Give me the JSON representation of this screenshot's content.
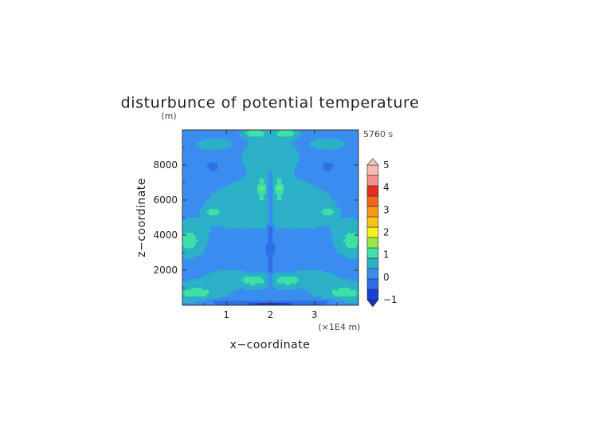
{
  "chart_data": {
    "type": "heatmap",
    "title": "disturbunce of potential temperature",
    "xlabel": "x−coordinate",
    "ylabel": "z−coordinate",
    "y_unit": "(m)",
    "x_unit": "(×1E4 m)",
    "time_label": "5760 s",
    "xlim": [
      0,
      4
    ],
    "ylim": [
      0,
      10000
    ],
    "x_ticks": [
      "1",
      "2",
      "3"
    ],
    "y_ticks": [
      "2000",
      "4000",
      "6000",
      "8000"
    ],
    "colorbar": {
      "tick_labels": [
        "5",
        "4",
        "3",
        "2",
        "1",
        "0",
        "−1"
      ],
      "levels": [
        -1,
        -0.5,
        0,
        0.5,
        1,
        1.5,
        2,
        2.5,
        3,
        3.5,
        4,
        4.5,
        5
      ],
      "colors": [
        "#1a3fd6",
        "#2f6ee6",
        "#3a8cf0",
        "#2bb0c8",
        "#3ee0a6",
        "#9ae64a",
        "#f2f21e",
        "#f6c21a",
        "#f79a1c",
        "#f0661a",
        "#e62a1e",
        "#f5908c",
        "#f7b7b2"
      ],
      "under_color": "#1b2fb8",
      "over_color": "#f7c6c2"
    },
    "grid": false,
    "field": {
      "background_level": 0.3,
      "features": [
        {
          "x": 2.0,
          "z": 5500,
          "rx": 1.55,
          "rz": 1900,
          "v": 0.8
        },
        {
          "x": 2.0,
          "z": 8500,
          "rx": 0.6,
          "rz": 900,
          "v": 0.85
        },
        {
          "x": 2.0,
          "z": 9300,
          "rx": 0.35,
          "rz": 600,
          "v": 0.85
        },
        {
          "x": 2.0,
          "z": 3200,
          "rx": 1.1,
          "rz": 900,
          "v": 0.0
        },
        {
          "x": 2.0,
          "z": 1600,
          "rx": 1.45,
          "rz": 650,
          "v": 0.85
        },
        {
          "x": 2.0,
          "z": 2200,
          "rx": 0.7,
          "rz": 400,
          "v": 0.15
        },
        {
          "x": 0.15,
          "z": 3700,
          "rx": 0.35,
          "rz": 850,
          "v": 1.2
        },
        {
          "x": 3.85,
          "z": 3700,
          "rx": 0.35,
          "rz": 850,
          "v": 1.2
        },
        {
          "x": 0.3,
          "z": 700,
          "rx": 0.6,
          "rz": 500,
          "v": 1.2
        },
        {
          "x": 3.7,
          "z": 700,
          "rx": 0.6,
          "rz": 500,
          "v": 1.2
        },
        {
          "x": 0.7,
          "z": 5300,
          "rx": 0.15,
          "rz": 250,
          "v": 1.5
        },
        {
          "x": 3.3,
          "z": 5300,
          "rx": 0.15,
          "rz": 250,
          "v": 1.5
        },
        {
          "x": 1.8,
          "z": 6700,
          "rx": 0.08,
          "rz": 650,
          "v": 1.6
        },
        {
          "x": 2.2,
          "z": 6700,
          "rx": 0.08,
          "rz": 650,
          "v": 1.6
        },
        {
          "x": 1.6,
          "z": 1400,
          "rx": 0.25,
          "rz": 250,
          "v": 1.4
        },
        {
          "x": 2.4,
          "z": 1400,
          "rx": 0.25,
          "rz": 250,
          "v": 1.4
        },
        {
          "x": 1.65,
          "z": 9800,
          "rx": 0.25,
          "rz": 250,
          "v": 1.5
        },
        {
          "x": 2.35,
          "z": 9800,
          "rx": 0.25,
          "rz": 250,
          "v": 1.5
        },
        {
          "x": 0.7,
          "z": 9200,
          "rx": 0.4,
          "rz": 350,
          "v": 0.8
        },
        {
          "x": 3.3,
          "z": 9200,
          "rx": 0.4,
          "rz": 350,
          "v": 0.8
        },
        {
          "x": 2.0,
          "z": 60,
          "rx": 0.6,
          "rz": 120,
          "v": -1.4
        },
        {
          "x": 1.0,
          "z": 150,
          "rx": 0.5,
          "rz": 200,
          "v": -0.2
        },
        {
          "x": 3.0,
          "z": 150,
          "rx": 0.5,
          "rz": 200,
          "v": -0.2
        },
        {
          "x": 0.7,
          "z": 7900,
          "rx": 0.25,
          "rz": 500,
          "v": -0.1
        },
        {
          "x": 3.3,
          "z": 7900,
          "rx": 0.25,
          "rz": 500,
          "v": -0.1
        },
        {
          "x": 2.0,
          "z": 3500,
          "rx": 0.06,
          "rz": 3000,
          "v": -0.2
        }
      ]
    }
  }
}
